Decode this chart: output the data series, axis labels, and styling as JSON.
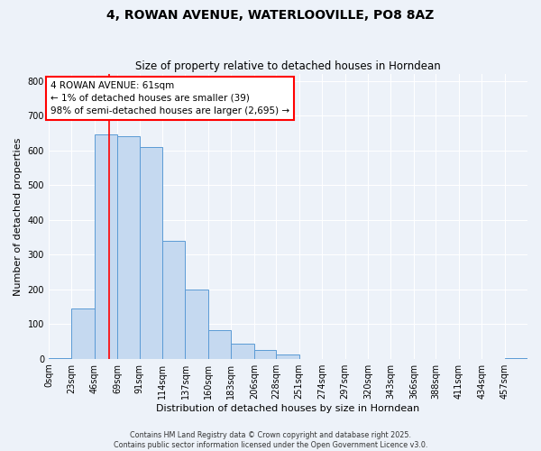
{
  "title": "4, ROWAN AVENUE, WATERLOOVILLE, PO8 8AZ",
  "subtitle": "Size of property relative to detached houses in Horndean",
  "xlabel": "Distribution of detached houses by size in Horndean",
  "ylabel": "Number of detached properties",
  "bin_labels": [
    "0sqm",
    "23sqm",
    "46sqm",
    "69sqm",
    "91sqm",
    "114sqm",
    "137sqm",
    "160sqm",
    "183sqm",
    "206sqm",
    "228sqm",
    "251sqm",
    "274sqm",
    "297sqm",
    "320sqm",
    "343sqm",
    "366sqm",
    "388sqm",
    "411sqm",
    "434sqm",
    "457sqm"
  ],
  "bar_values": [
    3,
    145,
    645,
    640,
    610,
    340,
    200,
    83,
    43,
    26,
    12,
    0,
    0,
    0,
    0,
    0,
    0,
    0,
    0,
    0,
    2
  ],
  "bin_edges": [
    0,
    23,
    46,
    69,
    91,
    114,
    137,
    160,
    183,
    206,
    228,
    251,
    274,
    297,
    320,
    343,
    366,
    388,
    411,
    434,
    457,
    480
  ],
  "bar_color": "#c5d9f0",
  "bar_edge_color": "#5b9bd5",
  "vline_x": 61,
  "vline_color": "red",
  "ylim": [
    0,
    820
  ],
  "yticks": [
    0,
    100,
    200,
    300,
    400,
    500,
    600,
    700,
    800
  ],
  "annotation_title": "4 ROWAN AVENUE: 61sqm",
  "annotation_line1": "← 1% of detached houses are smaller (39)",
  "annotation_line2": "98% of semi-detached houses are larger (2,695) →",
  "annotation_box_color": "white",
  "annotation_box_edgecolor": "red",
  "footer_line1": "Contains HM Land Registry data © Crown copyright and database right 2025.",
  "footer_line2": "Contains public sector information licensed under the Open Government Licence v3.0.",
  "background_color": "#edf2f9",
  "grid_color": "white",
  "title_fontsize": 10,
  "subtitle_fontsize": 8.5,
  "axis_label_fontsize": 8,
  "tick_fontsize": 7,
  "annotation_fontsize": 7.5,
  "footer_fontsize": 5.8
}
